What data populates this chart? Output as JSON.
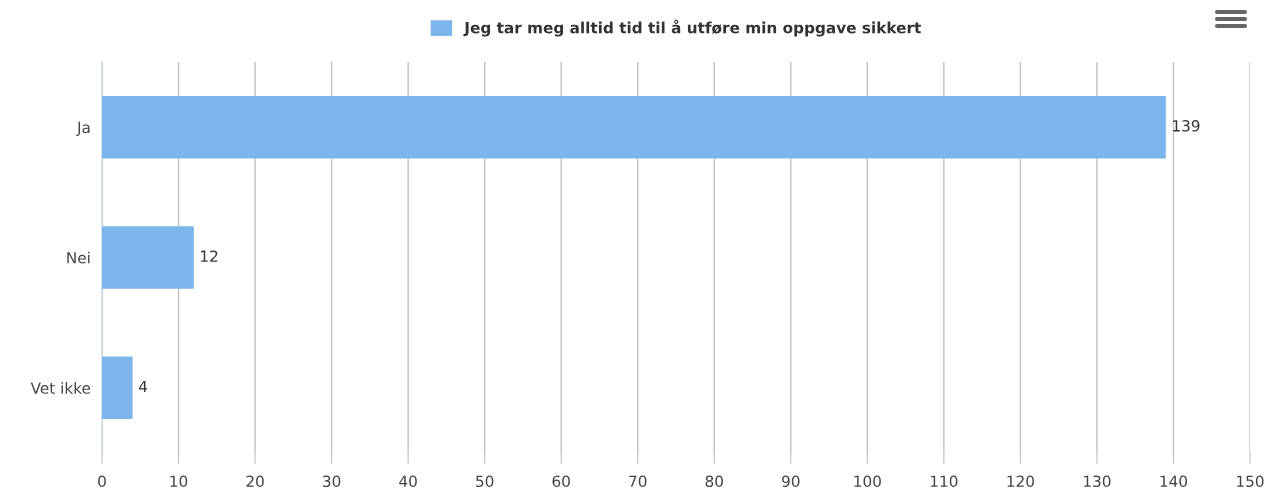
{
  "chart_data": {
    "type": "bar",
    "orientation": "horizontal",
    "categories": [
      "Ja",
      "Nei",
      "Vet ikke"
    ],
    "series": [
      {
        "name": "Jeg tar meg alltid tid til å utføre min oppgave sikkert",
        "color": "#7cb5ec",
        "values": [
          139,
          12,
          4
        ]
      }
    ],
    "xlim": [
      0,
      150
    ],
    "xticks": [
      0,
      10,
      20,
      30,
      40,
      50,
      60,
      70,
      80,
      90,
      100,
      110,
      120,
      130,
      140,
      150
    ],
    "grid": "x",
    "legend": "top",
    "data_labels": true
  }
}
